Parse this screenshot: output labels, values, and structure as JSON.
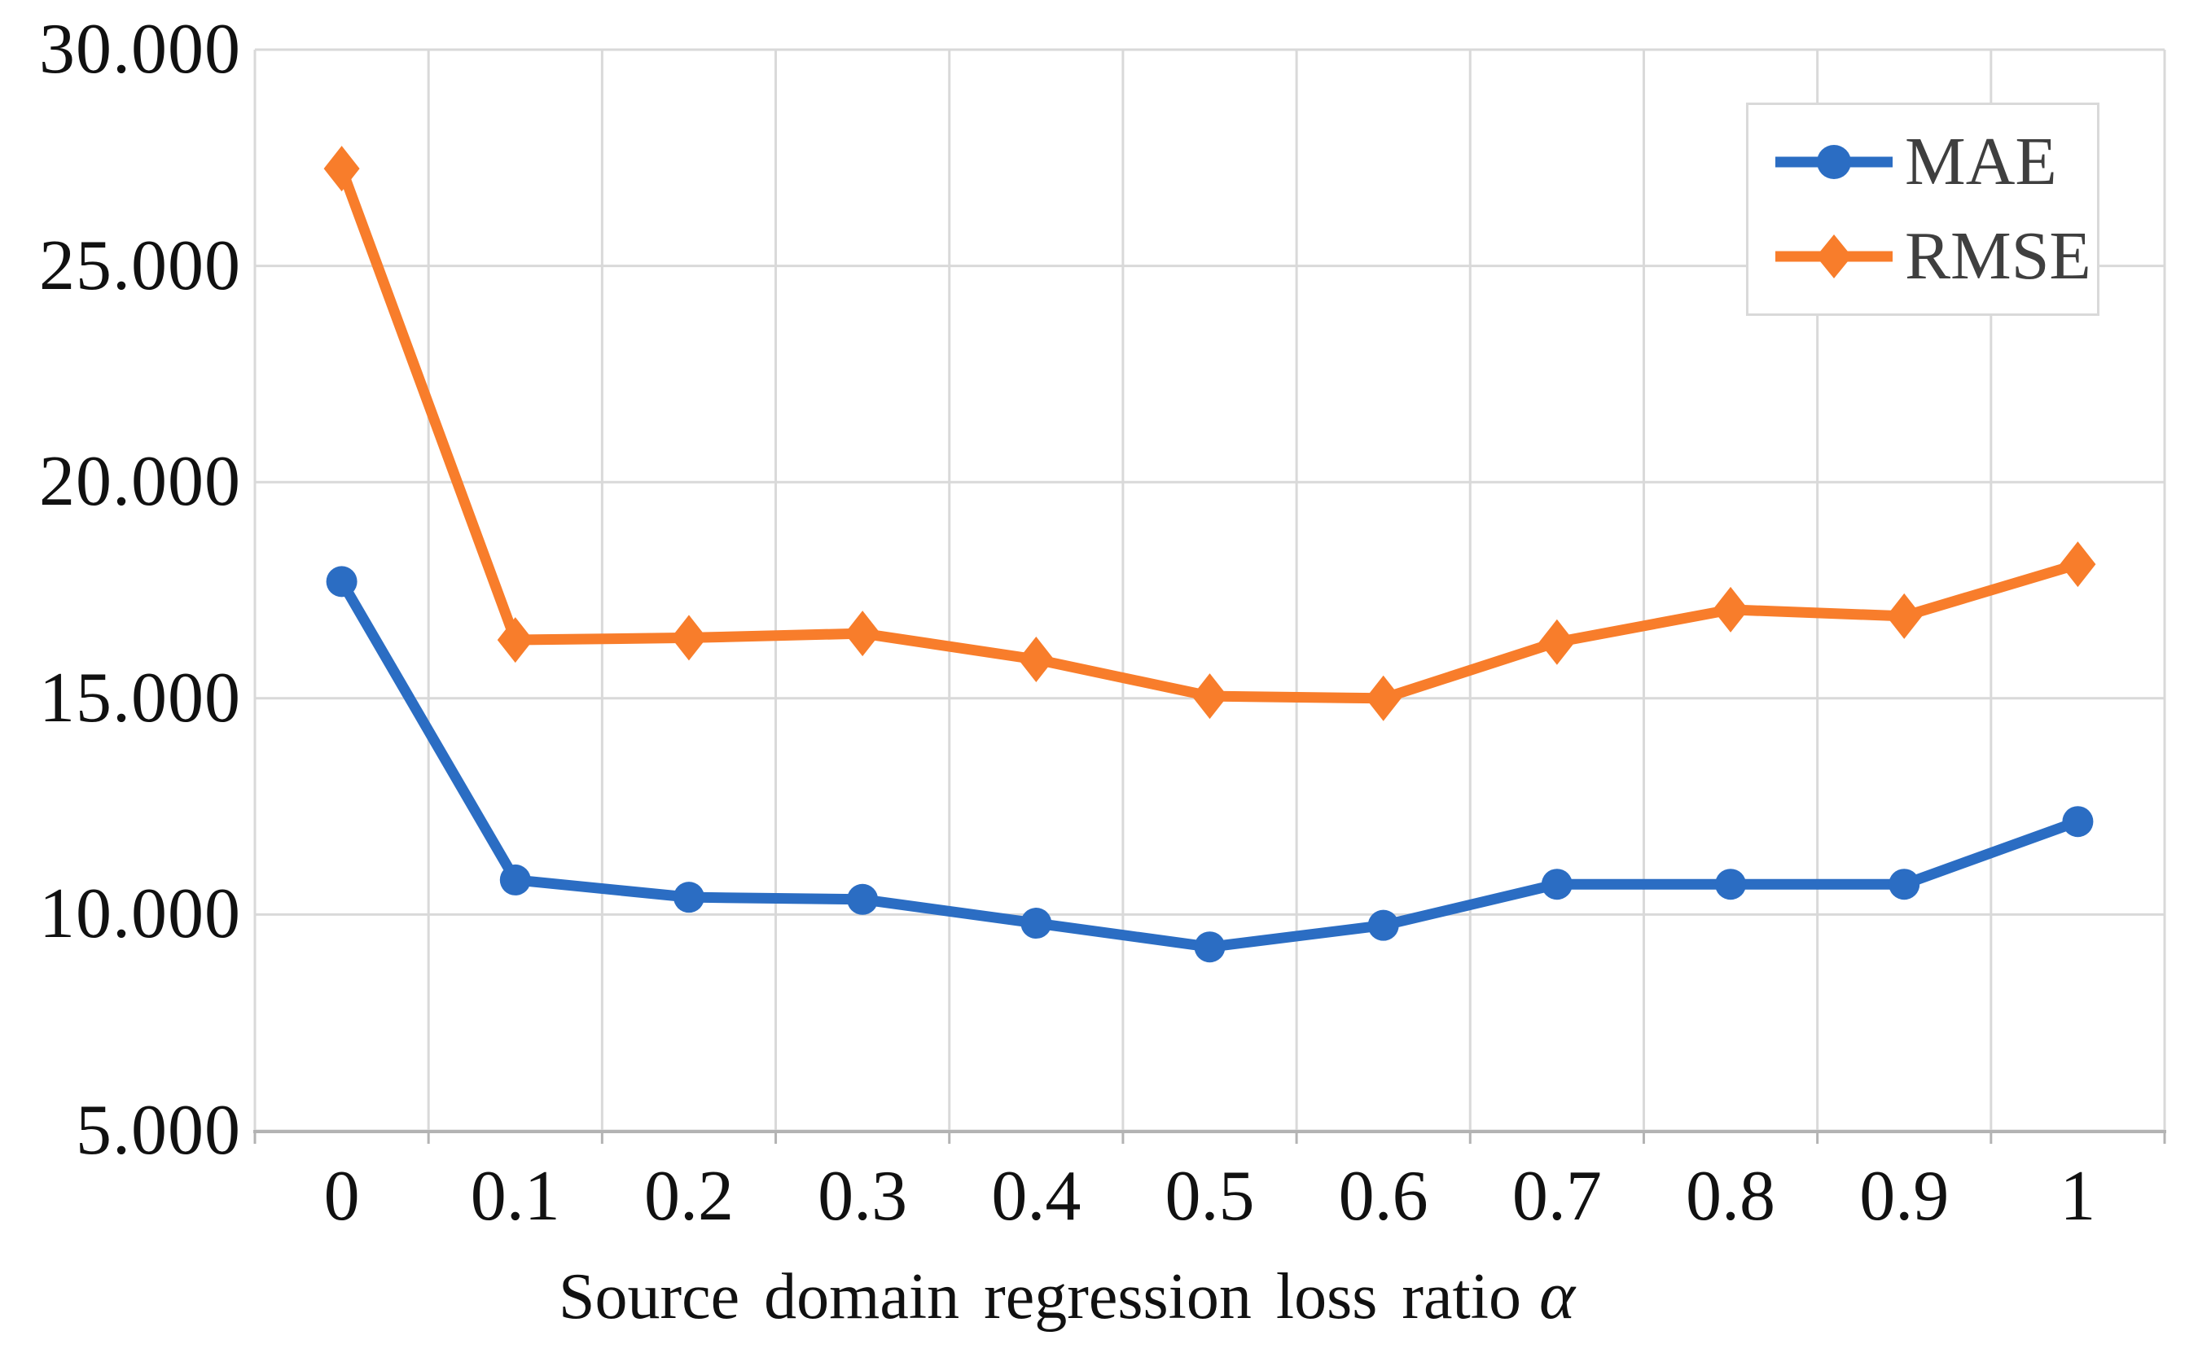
{
  "figure": {
    "background_color": "#ffffff",
    "text_color": "#111111",
    "legend_text_color": "#3f3f3f"
  },
  "chart_data": {
    "type": "line",
    "title": "",
    "xlabel_text": "Source domain regression loss ratio",
    "xlabel_symbol": "α",
    "categories": [
      "0",
      "0.1",
      "0.2",
      "0.3",
      "0.4",
      "0.5",
      "0.6",
      "0.7",
      "0.8",
      "0.9",
      "1"
    ],
    "series": [
      {
        "name": "MAE",
        "color": "#2b6dc3",
        "marker": "circle",
        "values": [
          17700,
          10800,
          10400,
          10350,
          9800,
          9250,
          9750,
          10700,
          10700,
          10700,
          12150
        ]
      },
      {
        "name": "RMSE",
        "color": "#f87d2b",
        "marker": "diamond",
        "values": [
          27250,
          16350,
          16400,
          16500,
          15900,
          15050,
          15000,
          16300,
          17050,
          16900,
          18100
        ]
      }
    ],
    "ylim": [
      5000,
      30000
    ],
    "yticks": [
      {
        "value": 30000,
        "label": "30.000"
      },
      {
        "value": 25000,
        "label": "25.000"
      },
      {
        "value": 20000,
        "label": "20.000"
      },
      {
        "value": 15000,
        "label": "15.000"
      },
      {
        "value": 10000,
        "label": "10.000"
      },
      {
        "value": 5000,
        "label": "5.000"
      }
    ],
    "grid": true,
    "legend_position": "top-right",
    "gridline_color": "#d9d9d9",
    "axis_line_color": "#b3b3b3"
  }
}
